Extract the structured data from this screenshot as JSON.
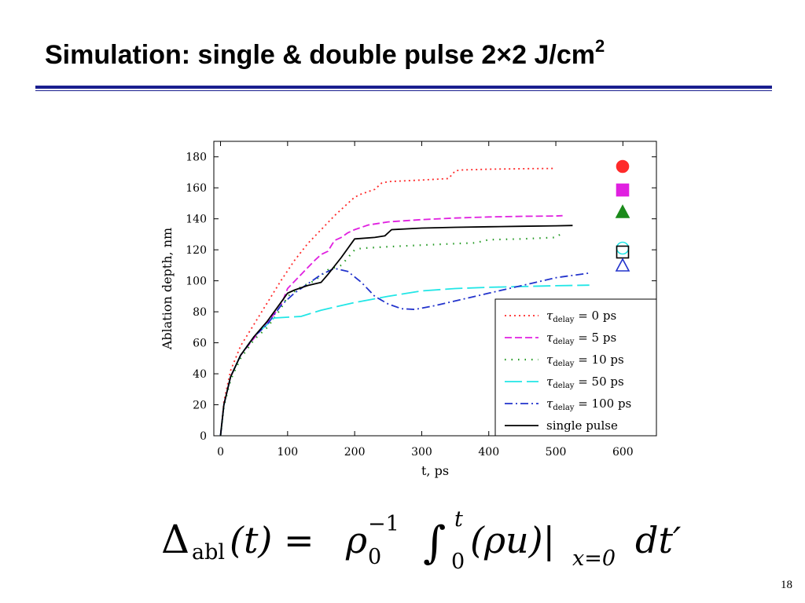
{
  "slide": {
    "title_main": "Simulation: single & double pulse 2×2 J/cm",
    "title_sup": "2",
    "page_number": "18"
  },
  "formula": {
    "lhs_symbol": "Δ",
    "lhs_sub": "abl",
    "lhs_arg": "(t) = ",
    "rho": "ρ",
    "rho_sub": "0",
    "rho_sup": "−1",
    "integral": "∫",
    "int_lower": "0",
    "int_upper": "t",
    "integrand": "(ρu)|",
    "eval_at": "x=0",
    "differential": "dt′"
  },
  "chart_data": {
    "type": "line",
    "xlabel": "t, ps",
    "ylabel": "Ablation depth, nm",
    "xlim": [
      -10,
      650
    ],
    "ylim": [
      0,
      190
    ],
    "xticks": [
      0,
      100,
      200,
      300,
      400,
      500,
      600
    ],
    "yticks": [
      0,
      20,
      40,
      60,
      80,
      100,
      120,
      140,
      160,
      180
    ],
    "grid": false,
    "legend_position": "bottom-right",
    "series": [
      {
        "name": "τdelay = 0 ps",
        "legend_main": "τ",
        "legend_sub": "delay",
        "legend_rest": " = 0 ps",
        "color": "#ff2a2a",
        "dash": "2,4",
        "width": 1.8,
        "marker": "circle",
        "x": [
          0,
          5,
          15,
          30,
          50,
          70,
          90,
          110,
          130,
          150,
          170,
          190,
          200,
          210,
          230,
          240,
          250,
          300,
          340,
          350,
          360,
          400,
          450,
          500
        ],
        "y": [
          0,
          22,
          42,
          58,
          72,
          86,
          100,
          113,
          124,
          133,
          142,
          150,
          154,
          156,
          159,
          163,
          164,
          165,
          166,
          171,
          171.5,
          172,
          172.3,
          172.5
        ]
      },
      {
        "name": "τdelay = 5 ps",
        "legend_main": "τ",
        "legend_sub": "delay",
        "legend_rest": " = 5 ps",
        "color": "#e020e0",
        "dash": "9,4",
        "width": 1.8,
        "marker": "square",
        "x": [
          0,
          5,
          15,
          30,
          50,
          70,
          90,
          100,
          120,
          140,
          150,
          160,
          170,
          180,
          190,
          200,
          220,
          250,
          300,
          350,
          400,
          450,
          500,
          510
        ],
        "y": [
          0,
          20,
          38,
          52,
          63,
          73,
          84,
          95,
          104,
          113,
          117,
          119,
          126,
          128,
          131,
          133,
          136,
          138,
          139.5,
          140.5,
          141.2,
          141.6,
          141.8,
          142
        ]
      },
      {
        "name": "τdelay = 10 ps",
        "legend_main": "τ",
        "legend_sub": "delay",
        "legend_rest": " = 10 ps",
        "color": "#229922",
        "dash": "1.5,7",
        "width": 2.2,
        "marker": "triangle",
        "x": [
          0,
          5,
          15,
          30,
          50,
          70,
          90,
          100,
          120,
          140,
          160,
          180,
          200,
          210,
          250,
          300,
          350,
          380,
          400,
          450,
          500,
          510
        ],
        "y": [
          0,
          19,
          36,
          50,
          62,
          70,
          82,
          90,
          96,
          100,
          107,
          110,
          120,
          121,
          122,
          123,
          124,
          124.5,
          126.5,
          127,
          128,
          131
        ]
      },
      {
        "name": "τdelay = 50 ps",
        "legend_main": "τ",
        "legend_sub": "delay",
        "legend_rest": " = 50 ps",
        "color": "#22e6e6",
        "dash": "22,6",
        "width": 1.8,
        "marker": "open-circle",
        "x": [
          0,
          5,
          15,
          30,
          50,
          70,
          80,
          100,
          120,
          150,
          200,
          250,
          300,
          350,
          400,
          450,
          500,
          550
        ],
        "y": [
          0,
          20,
          38,
          52,
          64,
          72,
          76,
          76.5,
          77,
          81,
          86,
          90,
          93.5,
          95,
          95.8,
          96.3,
          96.8,
          97.2
        ]
      },
      {
        "name": "τdelay = 100 ps",
        "legend_main": "τ",
        "legend_sub": "delay",
        "legend_rest": " = 100 ps",
        "color": "#2233cc",
        "dash": "10,4,2,4",
        "width": 1.8,
        "marker": "open-triangle",
        "x": [
          0,
          5,
          15,
          30,
          50,
          70,
          90,
          100,
          110,
          130,
          150,
          170,
          190,
          210,
          230,
          250,
          270,
          290,
          320,
          360,
          400,
          450,
          500,
          550
        ],
        "y": [
          0,
          20,
          38,
          52,
          64,
          72,
          84,
          88,
          92,
          98,
          104,
          108,
          106,
          99,
          90,
          85,
          82,
          81.5,
          84,
          88,
          92,
          97,
          102,
          105
        ]
      },
      {
        "name": "single pulse",
        "legend_main": "single pulse",
        "legend_sub": "",
        "legend_rest": "",
        "color": "#000000",
        "dash": "",
        "width": 1.8,
        "marker": "open-square",
        "x": [
          0,
          5,
          15,
          30,
          50,
          70,
          90,
          100,
          110,
          130,
          150,
          160,
          180,
          200,
          230,
          245,
          255,
          300,
          350,
          400,
          450,
          500,
          525
        ],
        "y": [
          0,
          20,
          38,
          52,
          64,
          74,
          86,
          92,
          94,
          97,
          99,
          104,
          115,
          127,
          128,
          129,
          133,
          134,
          134.5,
          134.9,
          135.2,
          135.5,
          135.7
        ]
      }
    ],
    "markers": [
      {
        "series": "τdelay = 0 ps",
        "shape": "circle",
        "color": "#ff2a2a",
        "filled": true
      },
      {
        "series": "τdelay = 5 ps",
        "shape": "square",
        "color": "#e020e0",
        "filled": true
      },
      {
        "series": "τdelay = 10 ps",
        "shape": "triangle",
        "color": "#1a8a1a",
        "filled": true
      },
      {
        "series": "τdelay = 50 ps",
        "shape": "circle",
        "color": "#22e6e6",
        "filled": false
      },
      {
        "series": "single pulse",
        "shape": "square",
        "color": "#000000",
        "filled": false
      },
      {
        "series": "τdelay = 100 ps",
        "shape": "triangle",
        "color": "#2233cc",
        "filled": false
      }
    ]
  }
}
